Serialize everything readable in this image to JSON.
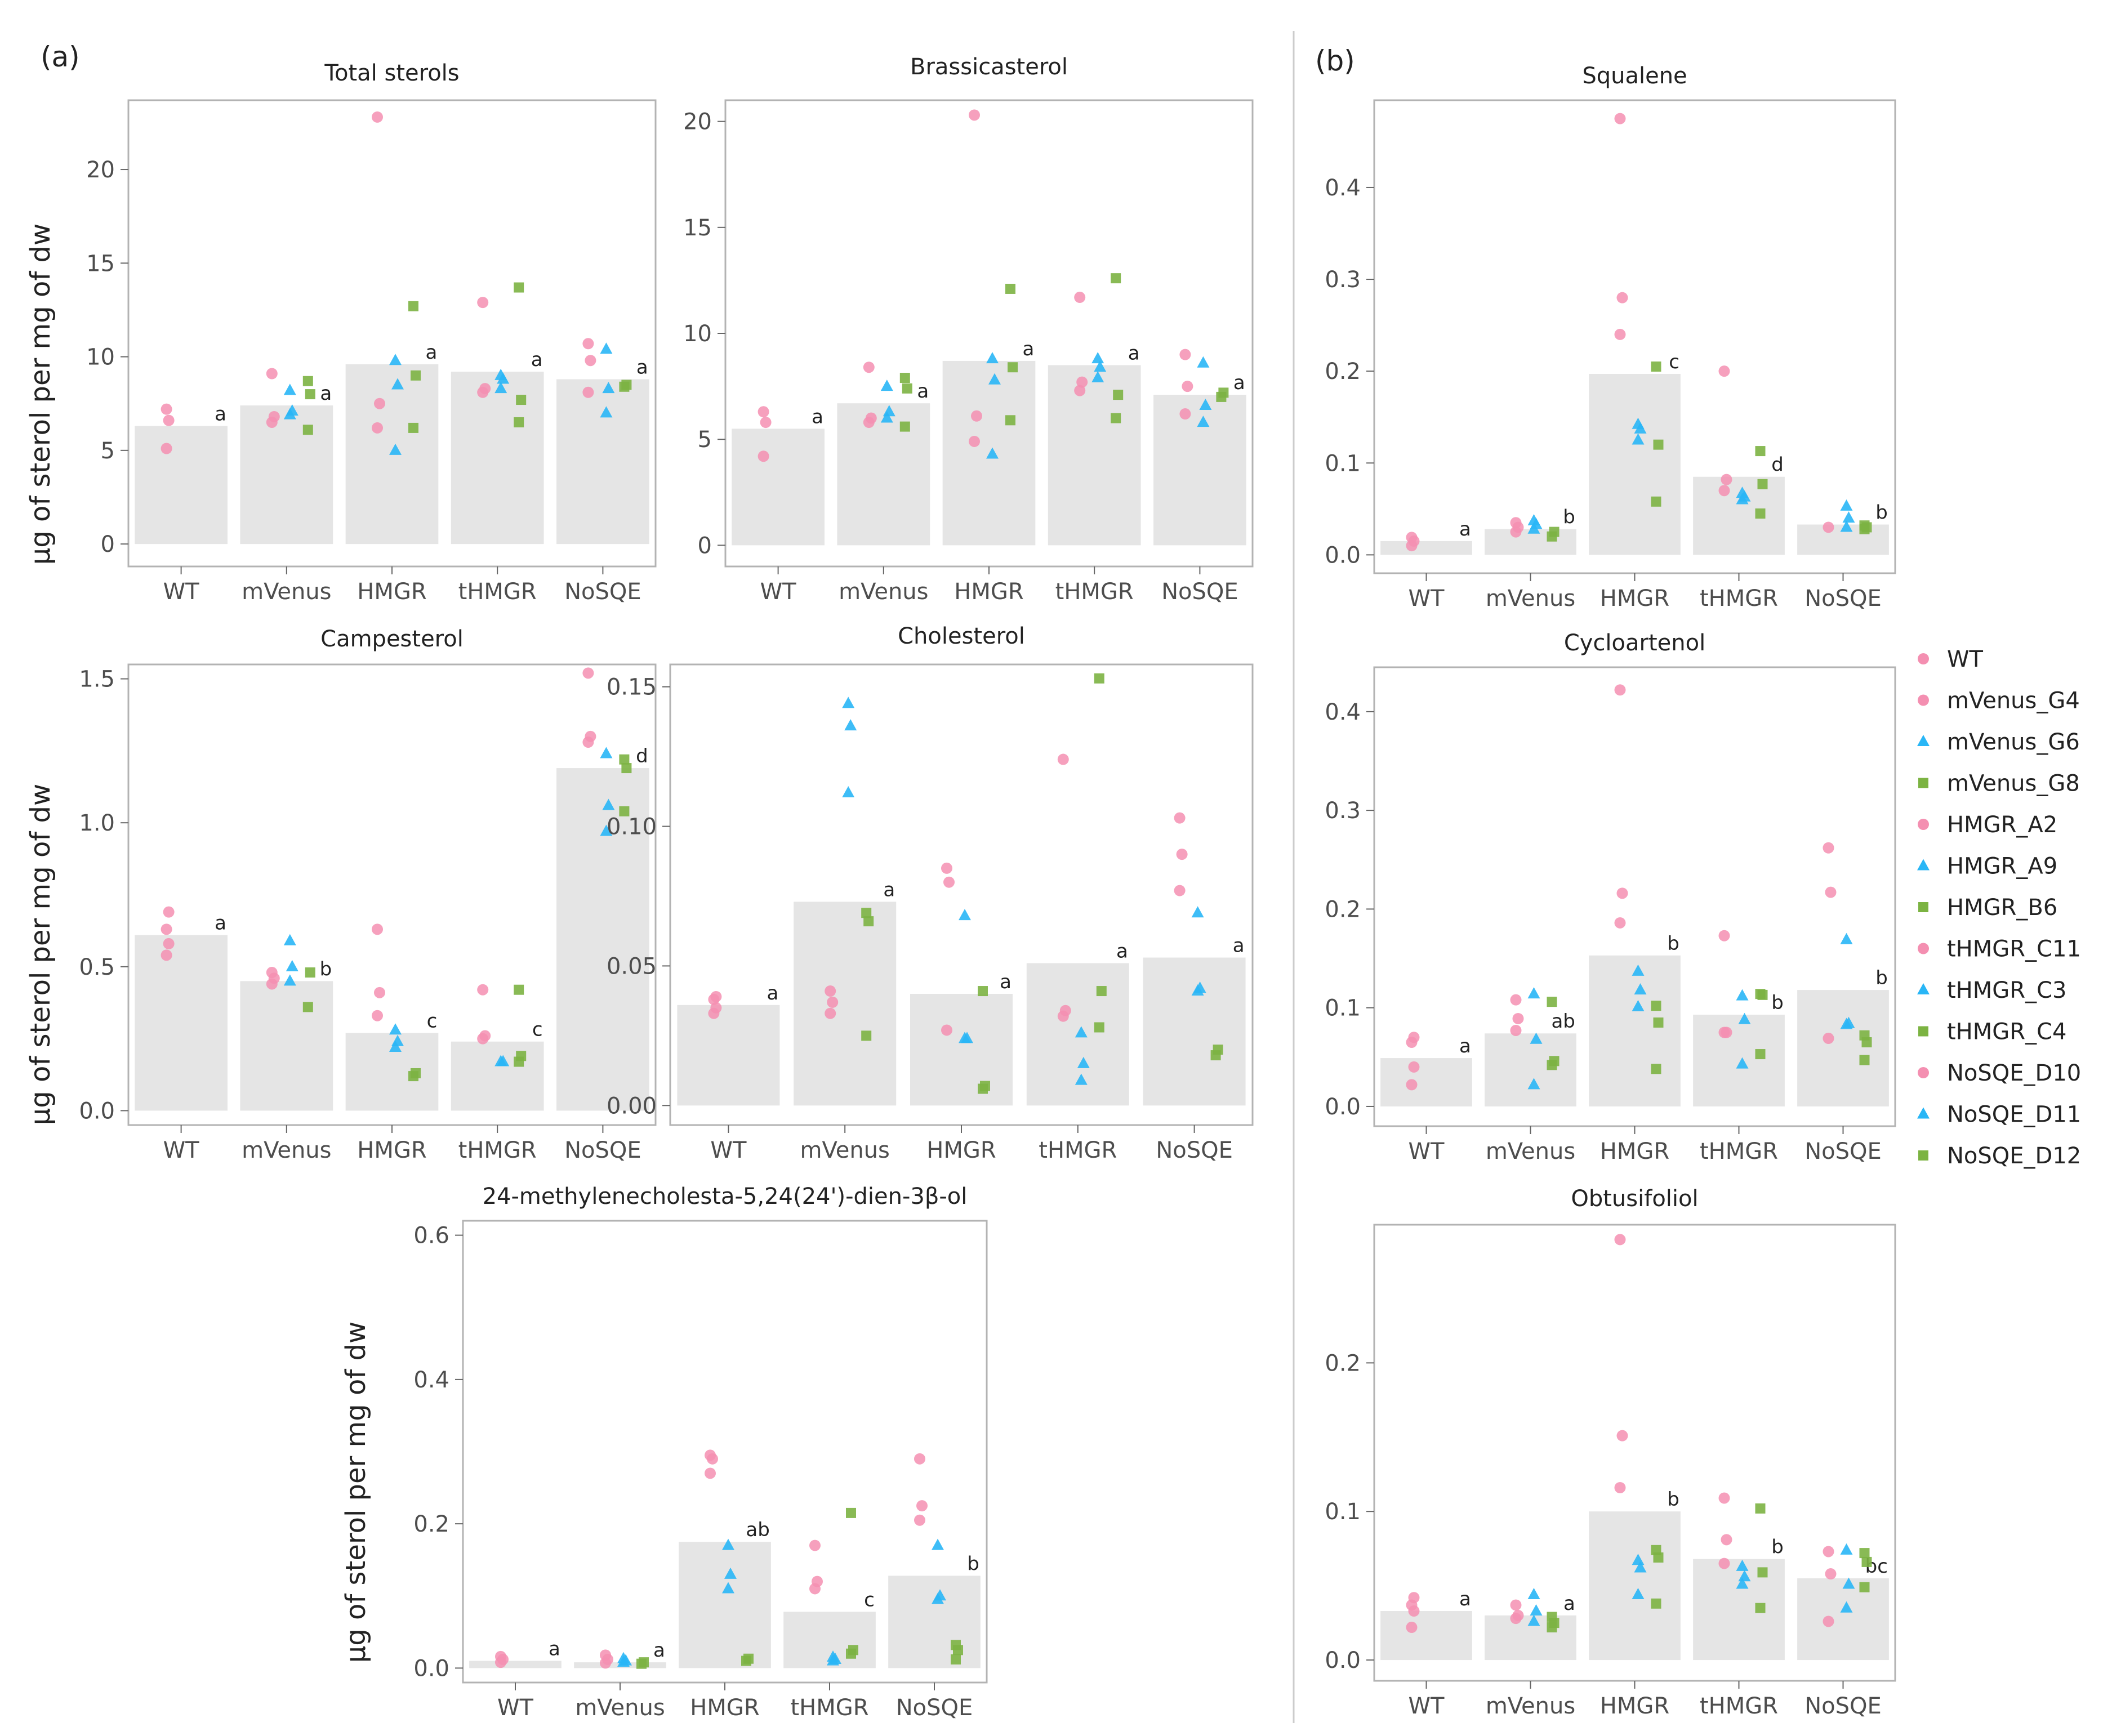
{
  "figure": {
    "panel_labels": [
      "(a)",
      "(b)"
    ],
    "y_axis_title": "µg of sterol per mg of dw"
  },
  "legend": {
    "items": [
      {
        "label": "WT",
        "shape": "circle",
        "color": "#F48FB1"
      },
      {
        "label": "mVenus_G4",
        "shape": "circle",
        "color": "#F48FB1"
      },
      {
        "label": "mVenus_G6",
        "shape": "triangle",
        "color": "#29B6F6"
      },
      {
        "label": "mVenus_G8",
        "shape": "square",
        "color": "#7CB342"
      },
      {
        "label": "HMGR_A2",
        "shape": "circle",
        "color": "#F48FB1"
      },
      {
        "label": "HMGR_A9",
        "shape": "triangle",
        "color": "#29B6F6"
      },
      {
        "label": "HMGR_B6",
        "shape": "square",
        "color": "#7CB342"
      },
      {
        "label": "tHMGR_C11",
        "shape": "circle",
        "color": "#F48FB1"
      },
      {
        "label": "tHMGR_C3",
        "shape": "triangle",
        "color": "#29B6F6"
      },
      {
        "label": "tHMGR_C4",
        "shape": "square",
        "color": "#7CB342"
      },
      {
        "label": "NoSQE_D10",
        "shape": "circle",
        "color": "#F48FB1"
      },
      {
        "label": "NoSQE_D11",
        "shape": "triangle",
        "color": "#29B6F6"
      },
      {
        "label": "NoSQE_D12",
        "shape": "square",
        "color": "#7CB342"
      }
    ]
  },
  "colors": {
    "pink": "#F48FB1",
    "blue": "#29B6F6",
    "green": "#7CB342",
    "bar": "#E5E5E5"
  },
  "chart_data": [
    {
      "id": "total",
      "type": "bar",
      "title": "Total sterols",
      "categories": [
        "WT",
        "mVenus",
        "HMGR",
        "tHMGR",
        "NoSQE"
      ],
      "ylim": [
        -1.2,
        23.7
      ],
      "yticks": [
        0,
        5,
        10,
        15,
        20
      ],
      "bars": [
        6.3,
        7.4,
        9.6,
        9.2,
        8.8
      ],
      "letters": [
        "a",
        "a",
        "a",
        "a",
        "a"
      ],
      "points": [
        [
          [
            5.1,
            6.6,
            7.2
          ],
          [],
          []
        ],
        [
          [
            6.5,
            6.8,
            9.1
          ],
          [
            6.9,
            7.1,
            8.2
          ],
          [
            6.1,
            8.0,
            8.7
          ]
        ],
        [
          [
            6.2,
            7.5,
            22.8
          ],
          [
            5.0,
            8.5,
            9.8
          ],
          [
            6.2,
            9.0,
            12.7
          ]
        ],
        [
          [
            8.1,
            8.3,
            12.9
          ],
          [
            8.3,
            8.8,
            9.0
          ],
          [
            6.5,
            7.7,
            13.7
          ]
        ],
        [
          [
            8.1,
            9.8,
            10.7
          ],
          [
            7.0,
            8.3,
            10.4
          ],
          [
            8.4,
            8.5
          ]
        ]
      ]
    },
    {
      "id": "brassica",
      "type": "bar",
      "title": "Brassicasterol",
      "categories": [
        "WT",
        "mVenus",
        "HMGR",
        "tHMGR",
        "NoSQE"
      ],
      "ylim": [
        -1.0,
        21.0
      ],
      "yticks": [
        0,
        5,
        10,
        15,
        20
      ],
      "bars": [
        5.5,
        6.7,
        8.7,
        8.5,
        7.1
      ],
      "letters": [
        "a",
        "a",
        "a",
        "a",
        "a"
      ],
      "points": [
        [
          [
            4.2,
            5.8,
            6.3
          ],
          [],
          []
        ],
        [
          [
            5.8,
            6.0,
            8.4
          ],
          [
            6.0,
            6.3,
            7.5
          ],
          [
            5.6,
            7.4,
            7.9
          ]
        ],
        [
          [
            4.9,
            6.1,
            20.3
          ],
          [
            4.3,
            7.8,
            8.8
          ],
          [
            5.9,
            8.4,
            12.1
          ]
        ],
        [
          [
            7.3,
            7.7,
            11.7
          ],
          [
            7.9,
            8.4,
            8.8
          ],
          [
            6.0,
            7.1,
            12.6
          ]
        ],
        [
          [
            6.2,
            7.5,
            9.0
          ],
          [
            5.8,
            6.6,
            8.6
          ],
          [
            7.0,
            7.2
          ]
        ]
      ]
    },
    {
      "id": "campest",
      "type": "bar",
      "title": "Campesterol",
      "categories": [
        "WT",
        "mVenus",
        "HMGR",
        "tHMGR",
        "NoSQE"
      ],
      "ylim": [
        -0.05,
        1.55
      ],
      "yticks": [
        0.0,
        0.5,
        1.0,
        1.5
      ],
      "ytickfmt": 1,
      "bars": [
        0.61,
        0.45,
        0.27,
        0.24,
        1.19
      ],
      "letters": [
        "a",
        "b",
        "c",
        "c",
        "d"
      ],
      "points": [
        [
          [
            0.54,
            0.58,
            0.63,
            0.69
          ],
          [],
          []
        ],
        [
          [
            0.44,
            0.46,
            0.48
          ],
          [
            0.45,
            0.5,
            0.59
          ],
          [
            0.36,
            0.48
          ]
        ],
        [
          [
            0.33,
            0.41,
            0.63
          ],
          [
            0.22,
            0.24,
            0.28
          ],
          [
            0.12,
            0.13
          ]
        ],
        [
          [
            0.25,
            0.26,
            0.42
          ],
          [
            0.17,
            0.17
          ],
          [
            0.17,
            0.19,
            0.42
          ]
        ],
        [
          [
            1.28,
            1.3,
            1.52
          ],
          [
            0.97,
            1.06,
            1.24
          ],
          [
            1.04,
            1.19,
            1.22
          ]
        ]
      ]
    },
    {
      "id": "chol",
      "type": "bar",
      "title": "Cholesterol",
      "categories": [
        "WT",
        "mVenus",
        "HMGR",
        "tHMGR",
        "NoSQE"
      ],
      "ylim": [
        -0.007,
        0.158
      ],
      "yticks": [
        0.0,
        0.05,
        0.1,
        0.15
      ],
      "ytickfmt": 2,
      "bars": [
        0.036,
        0.073,
        0.04,
        0.051,
        0.053
      ],
      "letters": [
        "a",
        "a",
        "a",
        "a",
        "a"
      ],
      "points": [
        [
          [
            0.033,
            0.035,
            0.038,
            0.039
          ],
          [],
          []
        ],
        [
          [
            0.033,
            0.037,
            0.041
          ],
          [
            0.112,
            0.136,
            0.144
          ],
          [
            0.025,
            0.066,
            0.069
          ]
        ],
        [
          [
            0.027,
            0.08,
            0.085
          ],
          [
            0.024,
            0.024,
            0.068
          ],
          [
            0.006,
            0.007,
            0.041
          ]
        ],
        [
          [
            0.032,
            0.034,
            0.124
          ],
          [
            0.009,
            0.015,
            0.026
          ],
          [
            0.028,
            0.041,
            0.153
          ]
        ],
        [
          [
            0.077,
            0.09,
            0.103
          ],
          [
            0.041,
            0.042,
            0.069
          ],
          [
            0.018,
            0.02
          ]
        ]
      ]
    },
    {
      "id": "meth",
      "type": "bar",
      "title": "24-methylenecholesta-5,24(24')-dien-3β-ol",
      "categories": [
        "WT",
        "mVenus",
        "HMGR",
        "tHMGR",
        "NoSQE"
      ],
      "ylim": [
        -0.02,
        0.62
      ],
      "yticks": [
        0.0,
        0.2,
        0.4,
        0.6
      ],
      "ytickfmt": 1,
      "bars": [
        0.01,
        0.008,
        0.175,
        0.078,
        0.128
      ],
      "letters": [
        "a",
        "a",
        "ab",
        "c",
        "b"
      ],
      "points": [
        [
          [
            0.008,
            0.012,
            0.016
          ],
          [],
          []
        ],
        [
          [
            0.007,
            0.012,
            0.018
          ],
          [
            0.008,
            0.01,
            0.013
          ],
          [
            0.006,
            0.008
          ]
        ],
        [
          [
            0.27,
            0.29,
            0.295
          ],
          [
            0.11,
            0.13,
            0.17
          ],
          [
            0.01,
            0.013
          ]
        ],
        [
          [
            0.11,
            0.12,
            0.17
          ],
          [
            0.01,
            0.012,
            0.015
          ],
          [
            0.02,
            0.025,
            0.215
          ]
        ],
        [
          [
            0.205,
            0.225,
            0.29
          ],
          [
            0.095,
            0.1,
            0.17
          ],
          [
            0.012,
            0.025,
            0.032
          ]
        ]
      ]
    },
    {
      "id": "squal",
      "type": "bar",
      "title": "Squalene",
      "categories": [
        "WT",
        "mVenus",
        "HMGR",
        "tHMGR",
        "NoSQE"
      ],
      "ylim": [
        -0.02,
        0.495
      ],
      "yticks": [
        0.0,
        0.1,
        0.2,
        0.3,
        0.4
      ],
      "ytickfmt": 1,
      "bars": [
        0.015,
        0.028,
        0.197,
        0.085,
        0.033
      ],
      "letters": [
        "a",
        "b",
        "c",
        "d",
        "b"
      ],
      "points": [
        [
          [
            0.01,
            0.015,
            0.019
          ],
          [],
          []
        ],
        [
          [
            0.025,
            0.03,
            0.035
          ],
          [
            0.028,
            0.033,
            0.037
          ],
          [
            0.02,
            0.025
          ]
        ],
        [
          [
            0.24,
            0.28,
            0.475
          ],
          [
            0.125,
            0.137,
            0.142
          ],
          [
            0.058,
            0.12,
            0.205
          ]
        ],
        [
          [
            0.07,
            0.082,
            0.2
          ],
          [
            0.06,
            0.063,
            0.067
          ],
          [
            0.045,
            0.077,
            0.113
          ]
        ],
        [
          [
            0.03
          ],
          [
            0.03,
            0.04,
            0.053
          ],
          [
            0.028,
            0.03,
            0.032
          ]
        ]
      ]
    },
    {
      "id": "cyclo",
      "type": "bar",
      "title": "Cycloartenol",
      "categories": [
        "WT",
        "mVenus",
        "HMGR",
        "tHMGR",
        "NoSQE"
      ],
      "ylim": [
        -0.02,
        0.445
      ],
      "yticks": [
        0.0,
        0.1,
        0.2,
        0.3,
        0.4
      ],
      "ytickfmt": 1,
      "bars": [
        0.049,
        0.074,
        0.153,
        0.093,
        0.118
      ],
      "letters": [
        "a",
        "ab",
        "b",
        "b",
        "b"
      ],
      "points": [
        [
          [
            0.022,
            0.04,
            0.065,
            0.07
          ],
          [],
          []
        ],
        [
          [
            0.077,
            0.089,
            0.108
          ],
          [
            0.022,
            0.068,
            0.114
          ],
          [
            0.042,
            0.046,
            0.106
          ]
        ],
        [
          [
            0.186,
            0.216,
            0.422
          ],
          [
            0.101,
            0.118,
            0.137
          ],
          [
            0.038,
            0.085,
            0.102
          ]
        ],
        [
          [
            0.075,
            0.075,
            0.173
          ],
          [
            0.043,
            0.088,
            0.112
          ],
          [
            0.053,
            0.113,
            0.114
          ]
        ],
        [
          [
            0.069,
            0.217,
            0.262
          ],
          [
            0.083,
            0.084,
            0.169
          ],
          [
            0.047,
            0.065,
            0.072
          ]
        ]
      ]
    },
    {
      "id": "obtus",
      "type": "bar",
      "title": "Obtusifoliol",
      "categories": [
        "WT",
        "mVenus",
        "HMGR",
        "tHMGR",
        "NoSQE"
      ],
      "ylim": [
        -0.014,
        0.293
      ],
      "yticks": [
        0.0,
        0.1,
        0.2
      ],
      "ytickfmt": 1,
      "bars": [
        0.033,
        0.03,
        0.1,
        0.068,
        0.055
      ],
      "letters": [
        "a",
        "a",
        "b",
        "b",
        "bc"
      ],
      "points": [
        [
          [
            0.022,
            0.033,
            0.037,
            0.042
          ],
          [],
          []
        ],
        [
          [
            0.028,
            0.03,
            0.037
          ],
          [
            0.026,
            0.033,
            0.044
          ],
          [
            0.022,
            0.025,
            0.029
          ]
        ],
        [
          [
            0.116,
            0.151,
            0.283
          ],
          [
            0.044,
            0.062,
            0.067
          ],
          [
            0.038,
            0.069,
            0.074
          ]
        ],
        [
          [
            0.065,
            0.081,
            0.109
          ],
          [
            0.051,
            0.056,
            0.063
          ],
          [
            0.035,
            0.059,
            0.102
          ]
        ],
        [
          [
            0.026,
            0.058,
            0.073
          ],
          [
            0.035,
            0.051,
            0.074
          ],
          [
            0.049,
            0.066,
            0.072
          ]
        ]
      ]
    }
  ]
}
